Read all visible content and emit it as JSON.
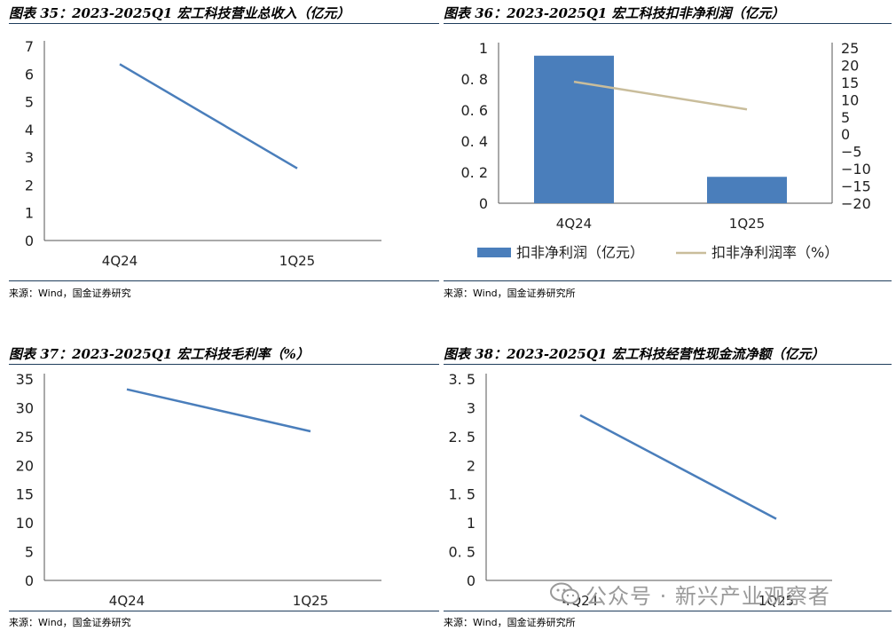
{
  "panels": [
    {
      "title": "图表 35：2023-2025Q1 宏工科技营业总收入（亿元）",
      "source": "来源：Wind，国金证券研究",
      "chart_data": {
        "type": "line",
        "categories": [
          "4Q24",
          "1Q25"
        ],
        "series": [
          {
            "values": [
              6.35,
              2.6
            ],
            "color": "#4a7ebb"
          }
        ],
        "ylim": [
          0,
          7
        ],
        "yticks": [
          "0",
          "1",
          "2",
          "3",
          "4",
          "5",
          "6",
          "7"
        ],
        "grid": false
      }
    },
    {
      "title": "图表 36：2023-2025Q1 宏工科技扣非净利润（亿元）",
      "source": "来源：Wind，国金证券研究所",
      "chart_data": {
        "type": "bar+line",
        "categories": [
          "4Q24",
          "1Q25"
        ],
        "series": [
          {
            "name": "扣非净利润（亿元）",
            "type": "bar",
            "axis": "left",
            "values": [
              0.95,
              0.17
            ],
            "color": "#4a7ebb"
          },
          {
            "name": "扣非净利润率（%）",
            "type": "line",
            "axis": "right",
            "values": [
              15.2,
              7.2
            ],
            "color": "#c9bd9b"
          }
        ],
        "ylim": [
          0,
          1
        ],
        "yticks": [
          "0",
          "0. 2",
          "0. 4",
          "0. 6",
          "0. 8",
          "1"
        ],
        "y2lim": [
          -20,
          25
        ],
        "y2ticks": [
          "−20",
          "−15",
          "−10",
          "−5",
          "0",
          "5",
          "10",
          "15",
          "20",
          "25"
        ],
        "legend": "bottom",
        "grid": false
      }
    },
    {
      "title": "图表 37：2023-2025Q1 宏工科技毛利率（%）",
      "source": "来源：Wind，国金证券研究",
      "chart_data": {
        "type": "line",
        "categories": [
          "4Q24",
          "1Q25"
        ],
        "series": [
          {
            "values": [
              33.2,
              25.9
            ],
            "color": "#4a7ebb"
          }
        ],
        "ylim": [
          0,
          35
        ],
        "yticks": [
          "0",
          "5",
          "10",
          "15",
          "20",
          "25",
          "30",
          "35"
        ],
        "grid": false
      }
    },
    {
      "title": "图表 38：2023-2025Q1 宏工科技经营性现金流净额（亿元）",
      "source": "来源：Wind，国金证券研究所",
      "chart_data": {
        "type": "line",
        "categories": [
          "4Q24",
          "1Q25"
        ],
        "series": [
          {
            "values": [
              2.87,
              1.07
            ],
            "color": "#4a7ebb"
          }
        ],
        "ylim": [
          0,
          3.5
        ],
        "yticks": [
          "0",
          "0. 5",
          "1",
          "1. 5",
          "2",
          "2. 5",
          "3",
          "3. 5"
        ],
        "grid": false
      }
    }
  ],
  "watermark": {
    "text": "公众号 · 新兴产业观察者",
    "icon": "wechat-icon"
  }
}
